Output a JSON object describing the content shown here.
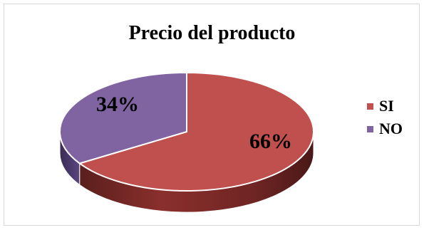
{
  "chart_data": {
    "type": "pie",
    "title": "Precio del producto",
    "categories": [
      "SI",
      "NO"
    ],
    "values": [
      66,
      34
    ],
    "data_labels": [
      "66%",
      "34%"
    ],
    "colors": [
      "#c0504d",
      "#8064a2"
    ],
    "style": "3d",
    "legend_placement": "right"
  }
}
